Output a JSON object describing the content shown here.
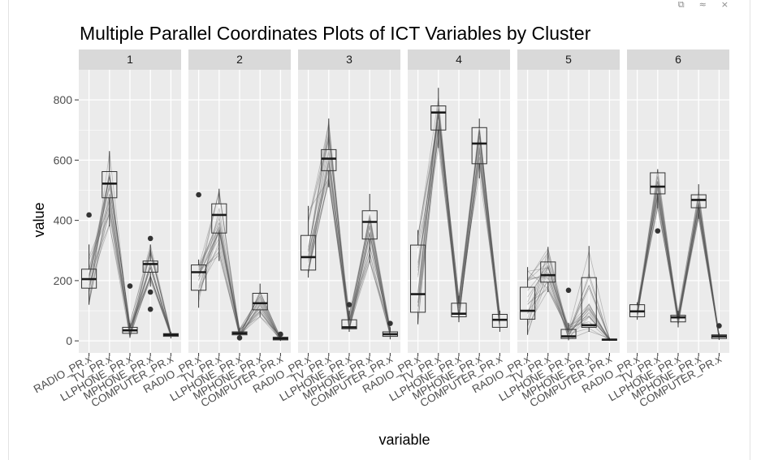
{
  "window_controls": {
    "restore": "⧉",
    "collapse": "≈",
    "close": "×"
  },
  "colors": {
    "panel_bg": "#ebebeb",
    "strip_bg": "#d9d9d9",
    "grid": "#ffffff",
    "lines": "#555555",
    "box": "#333333",
    "outlier": "#333333"
  },
  "chart_data": {
    "type": "box",
    "title": "Multiple Parallel Coordinates Plots of ICT Variables by Cluster",
    "xlabel": "variable",
    "ylabel": "value",
    "ylim": [
      -40,
      900
    ],
    "yticks": [
      0,
      200,
      400,
      600,
      800
    ],
    "grid": true,
    "variables": [
      "RADIO_PR.x",
      "TV_PR.x",
      "LLPHONE_PR.x",
      "MPHONE_PR.x",
      "COMPUTER_PR.x"
    ],
    "panels": [
      {
        "label": "1",
        "boxes": [
          {
            "q1": 175,
            "median": 205,
            "q3": 238,
            "min": 120,
            "max": 320,
            "outliers": [
              418
            ]
          },
          {
            "q1": 475,
            "median": 522,
            "q3": 562,
            "min": 380,
            "max": 630,
            "outliers": []
          },
          {
            "q1": 25,
            "median": 35,
            "q3": 45,
            "min": 10,
            "max": 60,
            "outliers": [
              182
            ]
          },
          {
            "q1": 228,
            "median": 255,
            "q3": 265,
            "min": 180,
            "max": 320,
            "outliers": [
              340,
              162,
              105
            ]
          },
          {
            "q1": 15,
            "median": 20,
            "q3": 24,
            "min": 8,
            "max": 30,
            "outliers": []
          }
        ]
      },
      {
        "label": "2",
        "boxes": [
          {
            "q1": 168,
            "median": 228,
            "q3": 252,
            "min": 110,
            "max": 270,
            "outliers": [
              485
            ]
          },
          {
            "q1": 358,
            "median": 418,
            "q3": 455,
            "min": 265,
            "max": 505,
            "outliers": []
          },
          {
            "q1": 20,
            "median": 25,
            "q3": 30,
            "min": 10,
            "max": 42,
            "outliers": [
              10
            ]
          },
          {
            "q1": 103,
            "median": 125,
            "q3": 158,
            "min": 80,
            "max": 190,
            "outliers": []
          },
          {
            "q1": 3,
            "median": 8,
            "q3": 12,
            "min": 0,
            "max": 20,
            "outliers": [
              22
            ]
          }
        ]
      },
      {
        "label": "3",
        "boxes": [
          {
            "q1": 235,
            "median": 278,
            "q3": 350,
            "min": 210,
            "max": 448,
            "outliers": []
          },
          {
            "q1": 565,
            "median": 605,
            "q3": 635,
            "min": 510,
            "max": 738,
            "outliers": []
          },
          {
            "q1": 40,
            "median": 45,
            "q3": 70,
            "min": 30,
            "max": 100,
            "outliers": [
              120
            ]
          },
          {
            "q1": 338,
            "median": 395,
            "q3": 432,
            "min": 260,
            "max": 488,
            "outliers": []
          },
          {
            "q1": 15,
            "median": 22,
            "q3": 30,
            "min": 5,
            "max": 45,
            "outliers": [
              58
            ]
          }
        ]
      },
      {
        "label": "4",
        "boxes": [
          {
            "q1": 95,
            "median": 155,
            "q3": 318,
            "min": 55,
            "max": 368,
            "outliers": []
          },
          {
            "q1": 700,
            "median": 758,
            "q3": 780,
            "min": 640,
            "max": 840,
            "outliers": []
          },
          {
            "q1": 80,
            "median": 90,
            "q3": 125,
            "min": 62,
            "max": 150,
            "outliers": []
          },
          {
            "q1": 588,
            "median": 655,
            "q3": 708,
            "min": 540,
            "max": 738,
            "outliers": []
          },
          {
            "q1": 45,
            "median": 70,
            "q3": 88,
            "min": 30,
            "max": 100,
            "outliers": []
          }
        ]
      },
      {
        "label": "5",
        "boxes": [
          {
            "q1": 72,
            "median": 100,
            "q3": 178,
            "min": 20,
            "max": 245,
            "outliers": []
          },
          {
            "q1": 195,
            "median": 218,
            "q3": 262,
            "min": 162,
            "max": 312,
            "outliers": []
          },
          {
            "q1": 8,
            "median": 15,
            "q3": 38,
            "min": 2,
            "max": 60,
            "outliers": [
              168
            ]
          },
          {
            "q1": 45,
            "median": 52,
            "q3": 210,
            "min": 30,
            "max": 315,
            "outliers": []
          },
          {
            "q1": 2,
            "median": 4,
            "q3": 6,
            "min": 0,
            "max": 10,
            "outliers": []
          }
        ]
      },
      {
        "label": "6",
        "boxes": [
          {
            "q1": 80,
            "median": 98,
            "q3": 120,
            "min": 70,
            "max": 128,
            "outliers": []
          },
          {
            "q1": 488,
            "median": 512,
            "q3": 558,
            "min": 440,
            "max": 570,
            "outliers": [
              365
            ]
          },
          {
            "q1": 63,
            "median": 78,
            "q3": 85,
            "min": 45,
            "max": 100,
            "outliers": []
          },
          {
            "q1": 442,
            "median": 468,
            "q3": 485,
            "min": 405,
            "max": 520,
            "outliers": []
          },
          {
            "q1": 8,
            "median": 15,
            "q3": 20,
            "min": 3,
            "max": 25,
            "outliers": [
              50
            ]
          }
        ]
      }
    ]
  }
}
